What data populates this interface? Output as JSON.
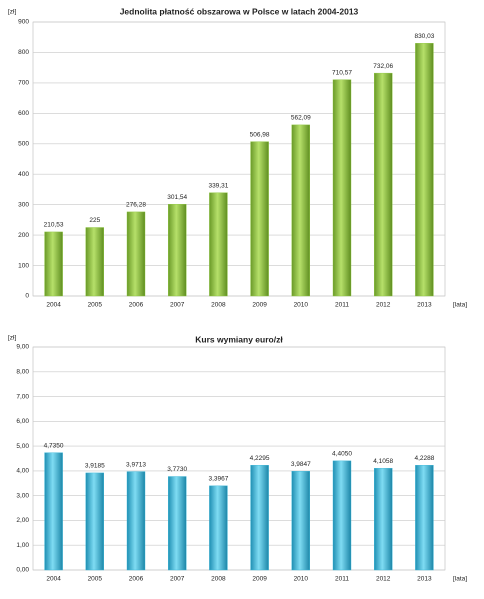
{
  "chart_data": [
    {
      "type": "bar",
      "title": "Jednolita płatność obszarowa w Polsce w latach 2004-2013",
      "y_label": "[zł]",
      "x_label": "[lata]",
      "categories": [
        "2004",
        "2005",
        "2006",
        "2007",
        "2008",
        "2009",
        "2010",
        "2011",
        "2012",
        "2013"
      ],
      "values": [
        210.53,
        225,
        276.28,
        301.54,
        339.31,
        506.98,
        562.09,
        710.57,
        732.06,
        830.03
      ],
      "value_labels": [
        "210,53",
        "225",
        "276,28",
        "301,54",
        "339,31",
        "506,98",
        "562,09",
        "710,57",
        "732,06",
        "830,03"
      ],
      "color": "#8cc63e",
      "ylim": [
        0,
        900
      ],
      "yticks": [
        0,
        100,
        200,
        300,
        400,
        500,
        600,
        700,
        800,
        900
      ],
      "grid": true
    },
    {
      "type": "bar",
      "title": "Kurs wymiany euro/zł",
      "y_label": "[zł]",
      "x_label": "[lata]",
      "categories": [
        "2004",
        "2005",
        "2006",
        "2007",
        "2008",
        "2009",
        "2010",
        "2011",
        "2012",
        "2013"
      ],
      "values": [
        4.735,
        3.9185,
        3.9713,
        3.773,
        3.3967,
        4.2295,
        3.9847,
        4.405,
        4.1058,
        4.2288
      ],
      "value_labels": [
        "4,7350",
        "3,9185",
        "3,9713",
        "3,7730",
        "3,3967",
        "4,2295",
        "3,9847",
        "4,4050",
        "4,1058",
        "4,2288"
      ],
      "color": "#38b6d8",
      "ylim": [
        0,
        9
      ],
      "yticks": [
        {
          "value": 0,
          "label": "0,00"
        },
        {
          "value": 1,
          "label": "1,00"
        },
        {
          "value": 2,
          "label": "2,00"
        },
        {
          "value": 3,
          "label": "3,00"
        },
        {
          "value": 4,
          "label": "4,00"
        },
        {
          "value": 5,
          "label": "5,00"
        },
        {
          "value": 6,
          "label": "6,00"
        },
        {
          "value": 7,
          "label": "7,00"
        },
        {
          "value": 8,
          "label": "8,00"
        },
        {
          "value": 9,
          "label": "9,00"
        }
      ],
      "grid": true
    }
  ]
}
